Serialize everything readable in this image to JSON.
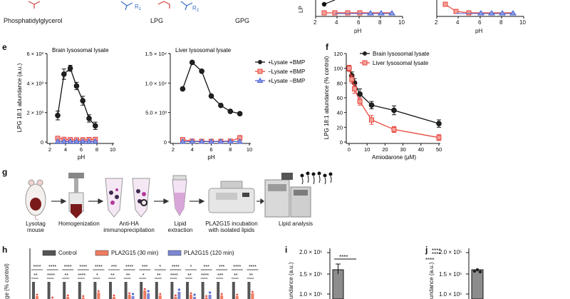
{
  "top": {
    "labels": {
      "pg": "Phosphatidylglycerol",
      "lpg": "LPG",
      "gpg": "GPG",
      "r1": "R",
      "r1_sub": "1",
      "r2": "R",
      "r2_sub": "2"
    },
    "panels": [
      {
        "xlabel": "pH",
        "ticks": [
          "2",
          "4",
          "6",
          "8",
          "10"
        ],
        "ylabel_fragment": "LP"
      },
      {
        "xlabel": "pH",
        "ticks": [
          "2",
          "4",
          "6",
          "8",
          "10"
        ]
      }
    ]
  },
  "panel_e": {
    "letter": "e"
  },
  "panel_f": {
    "letter": "f"
  },
  "panel_g": {
    "letter": "g",
    "steps": [
      {
        "label": "Lysotag",
        "label2": "mouse"
      },
      {
        "label": "Homogenization",
        "label2": ""
      },
      {
        "label": "Anti-HA",
        "label2": "immunoprecipitation"
      },
      {
        "label": "Lipid",
        "label2": "extraction"
      },
      {
        "label": "PLA2G15 incubation",
        "label2": "with isolated lipids"
      },
      {
        "label": "Lipid analysis",
        "label2": ""
      }
    ]
  },
  "panel_h": {
    "letter": "h",
    "legend": [
      {
        "label": "Control",
        "color": "#555555"
      },
      {
        "label": "PLA2G15 (30 min)",
        "color": "#f07c62"
      },
      {
        "label": "PLA2G15 (120 min)",
        "color": "#7c86d4"
      }
    ],
    "sig_row1": [
      "****",
      "****",
      "****",
      "****",
      "****",
      "***",
      "****",
      "***",
      "*",
      "****",
      "*",
      "***",
      "***",
      "****",
      "****"
    ],
    "sig_row2": [
      "**",
      "****",
      "**",
      "****",
      "*",
      "**",
      "**",
      "*",
      "**",
      "****",
      "**",
      "****",
      "***",
      "**",
      "**"
    ],
    "ylabel_fragment": "ge (% control)"
  },
  "panel_i": {
    "letter": "i",
    "ticks": [
      "2.0 × 10⁵",
      "1.5 × 10⁵",
      "1.0 × 10⁵"
    ],
    "sig": "****",
    "ylabel_fragment": "undance (a.u.)"
  },
  "panel_j": {
    "letter": "j",
    "ticks": [
      "2.0 × 10⁵",
      "1.5 × 10⁵",
      "1.0 × 10⁵"
    ],
    "sig": [
      "****",
      "****"
    ],
    "ylabel_fragment": "undance (a.u.)"
  },
  "chart_data": [
    {
      "type": "line",
      "panel": "e-left",
      "title": "Brain lysosomal lysate",
      "xlabel": "pH",
      "ylabel": "LPG 18:1 abundance (a.u.)",
      "xlim": [
        2,
        10
      ],
      "ylim": [
        0,
        6000
      ],
      "x_ticks": [
        "2",
        "4",
        "6",
        "8",
        "10"
      ],
      "y_ticks": [
        "0",
        "2 × 10³",
        "4 × 10³",
        "6 × 10³"
      ],
      "x": [
        3,
        3.8,
        4.6,
        5.4,
        6.2,
        7,
        7.8,
        8.6
      ],
      "series": [
        {
          "name": "+Lysate +BMP",
          "color": "#111111",
          "marker": "circle",
          "values": [
            1800,
            4600,
            5000,
            3800,
            2800,
            1600,
            1100,
            0
          ],
          "err": [
            300,
            350,
            200,
            250,
            300,
            250,
            250,
            0
          ]
        },
        {
          "name": "−Lysate +BMP",
          "color": "#e8453c",
          "marker": "square",
          "values": [
            250,
            180,
            160,
            150,
            150,
            170,
            180,
            0
          ],
          "err": [
            120,
            60,
            50,
            40,
            40,
            50,
            50,
            0
          ]
        },
        {
          "name": "+Lysate −BMP",
          "color": "#4a63d4",
          "marker": "triangle",
          "values": [
            40,
            40,
            40,
            40,
            40,
            40,
            40,
            0
          ],
          "err": [
            0,
            0,
            0,
            0,
            0,
            0,
            0,
            0
          ]
        }
      ],
      "legend": "top-right"
    },
    {
      "type": "line",
      "panel": "e-right",
      "title": "Liver lysosomal lysate",
      "xlabel": "pH",
      "ylabel": "",
      "xlim": [
        2,
        10
      ],
      "ylim": [
        0,
        15000
      ],
      "x_ticks": [
        "2",
        "4",
        "6",
        "8",
        "10"
      ],
      "y_ticks": [
        "0",
        "5.0 × 10³",
        "1.0 × 10⁴",
        "1.5 × 10⁴"
      ],
      "x": [
        3,
        4,
        5,
        6,
        7,
        8,
        9
      ],
      "series": [
        {
          "name": "+Lysate +BMP",
          "color": "#111111",
          "marker": "circle",
          "values": [
            9000,
            13500,
            12000,
            7800,
            6200,
            5200,
            4800
          ],
          "err": [
            0,
            0,
            0,
            0,
            0,
            0,
            0
          ]
        },
        {
          "name": "−Lysate +BMP",
          "color": "#e8453c",
          "marker": "square",
          "values": [
            400,
            150,
            120,
            120,
            120,
            150,
            700
          ],
          "err": [
            200,
            50,
            40,
            40,
            40,
            60,
            400
          ]
        },
        {
          "name": "+Lysate −BMP",
          "color": "#4a63d4",
          "marker": "triangle",
          "values": [
            80,
            80,
            80,
            80,
            80,
            80,
            80
          ],
          "err": [
            0,
            0,
            0,
            0,
            0,
            0,
            0
          ]
        }
      ]
    },
    {
      "type": "line",
      "panel": "f",
      "title": "",
      "xlabel": "Amiodarone (μM)",
      "ylabel": "LPG 18:1 abundance (% control)",
      "xlim": [
        0,
        50
      ],
      "ylim": [
        0,
        120
      ],
      "x_ticks": [
        "0",
        "10",
        "20",
        "30",
        "40",
        "50"
      ],
      "y_ticks": [
        "0",
        "20",
        "40",
        "60",
        "80",
        "100",
        "120"
      ],
      "x": [
        0,
        1.5,
        3,
        6,
        12.5,
        25,
        50
      ],
      "series": [
        {
          "name": "Brain lysosomal lysate",
          "color": "#111111",
          "marker": "circle",
          "values": [
            100,
            90,
            80,
            65,
            50,
            43,
            25
          ],
          "err": [
            4,
            5,
            6,
            7,
            5,
            6,
            5
          ]
        },
        {
          "name": "Liver lysosomal lysate",
          "color": "#e8453c",
          "marker": "square",
          "values": [
            100,
            85,
            72,
            55,
            30,
            17,
            6
          ],
          "err": [
            4,
            5,
            6,
            5,
            6,
            4,
            4
          ]
        }
      ],
      "legend": "top-right"
    }
  ]
}
